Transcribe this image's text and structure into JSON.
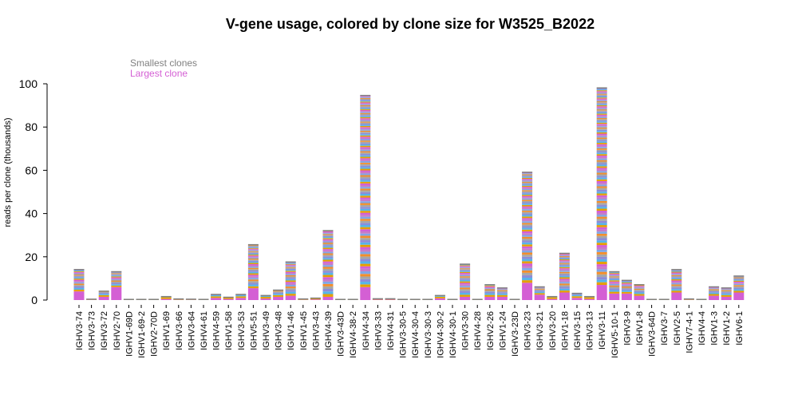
{
  "chart_data": {
    "type": "bar",
    "stacked": true,
    "title": "V-gene usage, colored by clone size for W3525_B2022",
    "xlabel": "",
    "ylabel": "reads per clone (thousands)",
    "ylim": [
      0,
      100
    ],
    "yticks": [
      0,
      20,
      40,
      60,
      80,
      100
    ],
    "grid": false,
    "legend": {
      "placement": "top-left",
      "entries": [
        {
          "label": "Smallest clones",
          "color": "#808080"
        },
        {
          "label": "Largest clone",
          "color": "#d45fd4"
        }
      ]
    },
    "segment_colors": [
      "#d45fd4",
      "#e69f00",
      "#56b4e9",
      "#8c8cd9",
      "#a6a6a6",
      "#f28e2b",
      "#7fa7e6",
      "#c77cc7"
    ],
    "categories": [
      "IGHV3-74",
      "IGHV3-73",
      "IGHV3-72",
      "IGHV2-70",
      "IGHV1-69D",
      "IGHV1-69-2",
      "IGHV2-70D",
      "IGHV1-69",
      "IGHV3-66",
      "IGHV3-64",
      "IGHV4-61",
      "IGHV4-59",
      "IGHV1-58",
      "IGHV3-53",
      "IGHV5-51",
      "IGHV3-49",
      "IGHV3-48",
      "IGHV1-46",
      "IGHV1-45",
      "IGHV3-43",
      "IGHV4-39",
      "IGHV3-43D",
      "IGHV4-38-2",
      "IGHV4-34",
      "IGHV3-33",
      "IGHV4-31",
      "IGHV3-30-5",
      "IGHV4-30-4",
      "IGHV3-30-3",
      "IGHV4-30-2",
      "IGHV4-30-1",
      "IGHV3-30",
      "IGHV4-28",
      "IGHV2-26",
      "IGHV1-24",
      "IGHV3-23D",
      "IGHV3-23",
      "IGHV3-21",
      "IGHV3-20",
      "IGHV1-18",
      "IGHV3-15",
      "IGHV3-13",
      "IGHV3-11",
      "IGHV5-10-1",
      "IGHV3-9",
      "IGHV1-8",
      "IGHV3-64D",
      "IGHV3-7",
      "IGHV2-5",
      "IGHV7-4-1",
      "IGHV4-4",
      "IGHV1-3",
      "IGHV1-2",
      "IGHV6-1"
    ],
    "values": [
      14,
      0.3,
      4,
      13,
      0.2,
      0.2,
      0.2,
      1.5,
      0.4,
      0.3,
      0.2,
      2.5,
      1.2,
      2.5,
      25.5,
      2,
      4.5,
      17.5,
      0.4,
      0.8,
      32,
      0.2,
      0.2,
      94.5,
      0.5,
      0.5,
      0.2,
      0.2,
      0.2,
      2,
      0.2,
      16.5,
      0.2,
      7,
      5.5,
      0.2,
      59,
      6,
      1.5,
      21.5,
      3,
      1.5,
      98,
      13,
      9,
      7,
      0.2,
      0.2,
      14,
      0.4,
      0.2,
      6,
      5.5,
      11
    ],
    "largest_clone": [
      4,
      0.1,
      1.5,
      6,
      0,
      0,
      0,
      0.5,
      0.1,
      0.1,
      0,
      1,
      0.5,
      1,
      5.5,
      0.7,
      1.5,
      2,
      0.1,
      0.3,
      1.5,
      0,
      0,
      6,
      0.2,
      0.2,
      0,
      0,
      0,
      0.8,
      0,
      1.5,
      0,
      1.5,
      1.5,
      0,
      8,
      2.5,
      0.5,
      3.5,
      1,
      0.5,
      7,
      3,
      3,
      2,
      0,
      0,
      3.5,
      0.1,
      0,
      2,
      1.5,
      3.5
    ]
  }
}
